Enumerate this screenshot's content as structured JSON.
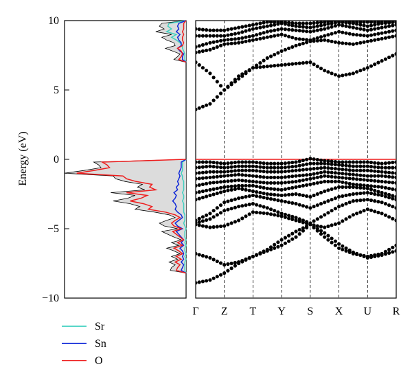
{
  "chart_data": [
    {
      "type": "area",
      "panel": "density of states",
      "ylabel": "Energy (eV)",
      "ylim": [
        -10,
        10
      ],
      "yticks": [
        {
          "value": 10,
          "label": "10"
        },
        {
          "value": 5,
          "label": "5"
        },
        {
          "value": 0,
          "label": "0"
        },
        {
          "value": -5,
          "label": "−5"
        },
        {
          "value": -10,
          "label": "−10"
        }
      ],
      "xlim": [
        0,
        1
      ],
      "fermi_level": 0,
      "energy": [
        -8.2,
        -8.0,
        -7.8,
        -7.6,
        -7.4,
        -7.2,
        -7.0,
        -6.8,
        -6.6,
        -6.4,
        -6.2,
        -6.0,
        -5.8,
        -5.6,
        -5.4,
        -5.2,
        -5.0,
        -4.8,
        -4.6,
        -4.4,
        -4.2,
        -4.0,
        -3.8,
        -3.6,
        -3.4,
        -3.2,
        -3.0,
        -2.8,
        -2.6,
        -2.4,
        -2.2,
        -2.0,
        -1.8,
        -1.6,
        -1.4,
        -1.2,
        -1.0,
        -0.8,
        -0.6,
        -0.4,
        -0.2,
        0.0,
        7.0,
        7.2,
        7.4,
        7.6,
        7.8,
        8.0,
        8.2,
        8.4,
        8.6,
        8.8,
        9.0,
        9.2,
        9.4,
        9.6,
        9.8,
        10.0
      ],
      "total": [
        0.0,
        0.13,
        0.12,
        0.09,
        0.14,
        0.07,
        0.12,
        0.05,
        0.1,
        0.16,
        0.06,
        0.12,
        0.04,
        0.1,
        0.15,
        0.2,
        0.07,
        0.18,
        0.22,
        0.16,
        0.09,
        0.14,
        0.26,
        0.42,
        0.38,
        0.46,
        0.6,
        0.48,
        0.42,
        0.62,
        0.34,
        0.4,
        0.36,
        0.5,
        0.58,
        0.6,
        1.0,
        0.84,
        0.7,
        0.72,
        0.76,
        0.0,
        0.0,
        0.1,
        0.07,
        0.05,
        0.11,
        0.17,
        0.09,
        0.1,
        0.16,
        0.2,
        0.12,
        0.25,
        0.18,
        0.22,
        0.2,
        0.0
      ],
      "series": [
        {
          "name": "Sr",
          "color": "#3fd0c0",
          "values": [
            0.0,
            0.01,
            0.01,
            0.01,
            0.01,
            0.0,
            0.01,
            0.0,
            0.01,
            0.01,
            0.0,
            0.01,
            0.0,
            0.01,
            0.01,
            0.01,
            0.0,
            0.01,
            0.02,
            0.01,
            0.01,
            0.01,
            0.02,
            0.02,
            0.02,
            0.02,
            0.03,
            0.02,
            0.02,
            0.03,
            0.02,
            0.02,
            0.02,
            0.02,
            0.03,
            0.03,
            0.04,
            0.03,
            0.03,
            0.03,
            0.03,
            0.0,
            0.0,
            0.01,
            0.01,
            0.01,
            0.02,
            0.03,
            0.03,
            0.05,
            0.08,
            0.12,
            0.08,
            0.16,
            0.12,
            0.15,
            0.14,
            0.0
          ]
        },
        {
          "name": "Sn",
          "color": "#1028d8",
          "values": [
            0.0,
            0.04,
            0.03,
            0.02,
            0.04,
            0.02,
            0.03,
            0.02,
            0.03,
            0.05,
            0.02,
            0.04,
            0.02,
            0.04,
            0.06,
            0.08,
            0.03,
            0.07,
            0.09,
            0.06,
            0.03,
            0.04,
            0.07,
            0.09,
            0.08,
            0.09,
            0.11,
            0.09,
            0.08,
            0.1,
            0.07,
            0.08,
            0.06,
            0.07,
            0.06,
            0.05,
            0.06,
            0.05,
            0.04,
            0.04,
            0.04,
            0.0,
            0.0,
            0.03,
            0.03,
            0.02,
            0.05,
            0.07,
            0.04,
            0.04,
            0.06,
            0.07,
            0.05,
            0.08,
            0.06,
            0.07,
            0.06,
            0.0
          ]
        },
        {
          "name": "O",
          "color": "#ee1c1c",
          "values": [
            0.0,
            0.08,
            0.07,
            0.05,
            0.09,
            0.04,
            0.08,
            0.03,
            0.06,
            0.1,
            0.03,
            0.07,
            0.02,
            0.05,
            0.08,
            0.11,
            0.04,
            0.1,
            0.12,
            0.09,
            0.05,
            0.09,
            0.17,
            0.31,
            0.28,
            0.35,
            0.46,
            0.37,
            0.32,
            0.49,
            0.25,
            0.3,
            0.28,
            0.41,
            0.49,
            0.52,
            0.9,
            0.76,
            0.63,
            0.65,
            0.69,
            0.0,
            0.0,
            0.06,
            0.04,
            0.03,
            0.04,
            0.07,
            0.03,
            0.02,
            0.03,
            0.03,
            0.02,
            0.03,
            0.02,
            0.02,
            0.02,
            0.0
          ]
        }
      ]
    },
    {
      "type": "scatter",
      "panel": "band structure",
      "ylim": [
        -10,
        10
      ],
      "kpoints": [
        {
          "label": "Γ",
          "x": 0
        },
        {
          "label": "Z",
          "x": 1
        },
        {
          "label": "T",
          "x": 2
        },
        {
          "label": "Y",
          "x": 3
        },
        {
          "label": "S",
          "x": 4
        },
        {
          "label": "X",
          "x": 5
        },
        {
          "label": "U",
          "x": 6
        },
        {
          "label": "R",
          "x": 7
        }
      ],
      "x_samples": [
        0,
        0.5,
        1,
        1.5,
        2,
        2.5,
        3,
        3.5,
        4,
        4.5,
        5,
        5.5,
        6,
        6.5,
        7
      ],
      "fermi_level": 0,
      "fermi_color": "#ee1c1c",
      "bands": [
        [
          -8.9,
          -8.7,
          -8.2,
          -7.5,
          -7.0,
          -6.6,
          -6.2,
          -5.6,
          -4.7,
          -5.6,
          -6.4,
          -6.8,
          -7.0,
          -6.8,
          -6.2
        ],
        [
          -6.8,
          -7.1,
          -7.6,
          -7.4,
          -7.0,
          -6.5,
          -5.8,
          -5.2,
          -4.7,
          -5.3,
          -6.1,
          -6.7,
          -7.1,
          -6.9,
          -6.6
        ],
        [
          -4.7,
          -4.9,
          -4.8,
          -4.4,
          -3.8,
          -3.9,
          -4.1,
          -4.4,
          -4.7,
          -4.9,
          -4.6,
          -4.0,
          -3.6,
          -3.9,
          -4.4
        ],
        [
          -4.6,
          -4.3,
          -3.7,
          -3.4,
          -3.2,
          -3.5,
          -3.9,
          -4.2,
          -4.6,
          -4.0,
          -3.4,
          -3.0,
          -2.9,
          -3.1,
          -3.5
        ],
        [
          -4.4,
          -3.9,
          -3.1,
          -2.8,
          -2.6,
          -2.8,
          -3.0,
          -3.2,
          -3.5,
          -3.1,
          -2.7,
          -2.5,
          -2.4,
          -2.6,
          -2.9
        ],
        [
          -2.9,
          -2.6,
          -2.3,
          -2.1,
          -2.3,
          -2.5,
          -2.6,
          -2.5,
          -2.7,
          -2.3,
          -2.0,
          -2.0,
          -2.1,
          -2.4,
          -2.7
        ],
        [
          -2.4,
          -2.2,
          -2.0,
          -1.9,
          -1.9,
          -2.1,
          -2.2,
          -2.0,
          -1.8,
          -1.6,
          -1.6,
          -1.8,
          -1.9,
          -2.0,
          -2.2
        ],
        [
          -1.9,
          -1.7,
          -1.6,
          -1.5,
          -1.6,
          -1.7,
          -1.7,
          -1.6,
          -1.4,
          -1.2,
          -1.3,
          -1.4,
          -1.5,
          -1.6,
          -1.7
        ],
        [
          -1.4,
          -1.3,
          -1.2,
          -1.1,
          -1.2,
          -1.3,
          -1.3,
          -1.2,
          -1.1,
          -0.9,
          -1.0,
          -1.1,
          -1.2,
          -1.2,
          -1.3
        ],
        [
          -1.0,
          -0.9,
          -0.9,
          -0.8,
          -0.8,
          -0.9,
          -0.9,
          -0.8,
          -0.7,
          -0.6,
          -0.7,
          -0.8,
          -0.8,
          -0.9,
          -1.0
        ],
        [
          -0.6,
          -0.5,
          -0.6,
          -0.5,
          -0.5,
          -0.6,
          -0.6,
          -0.5,
          -0.3,
          -0.3,
          -0.4,
          -0.5,
          -0.5,
          -0.6,
          -0.6
        ],
        [
          -0.2,
          -0.2,
          -0.3,
          -0.2,
          -0.2,
          -0.3,
          -0.3,
          -0.2,
          0.05,
          -0.1,
          -0.2,
          -0.2,
          -0.2,
          -0.3,
          -0.2
        ],
        [
          3.6,
          4.0,
          5.0,
          6.0,
          6.6,
          6.7,
          6.8,
          6.9,
          7.0,
          6.4,
          6.0,
          6.2,
          6.6,
          7.1,
          7.6
        ],
        [
          7.0,
          6.2,
          5.0,
          5.8,
          6.6,
          7.3,
          7.8,
          8.2,
          8.5,
          8.6,
          8.4,
          8.3,
          8.5,
          8.7,
          8.9
        ],
        [
          7.7,
          7.9,
          8.3,
          8.4,
          8.6,
          8.8,
          9.0,
          8.7,
          8.6,
          8.9,
          9.2,
          9.0,
          8.9,
          9.1,
          9.3
        ],
        [
          8.1,
          8.4,
          8.6,
          8.7,
          8.9,
          9.2,
          9.4,
          9.3,
          9.2,
          9.4,
          9.7,
          9.5,
          9.3,
          9.5,
          9.7
        ],
        [
          8.9,
          8.9,
          8.9,
          9.1,
          9.4,
          9.6,
          9.8,
          9.6,
          9.5,
          9.7,
          9.9,
          9.8,
          9.6,
          9.8,
          9.9
        ],
        [
          9.4,
          9.3,
          9.3,
          9.5,
          9.7,
          9.9,
          9.9,
          9.8,
          9.8,
          9.9,
          10.0,
          9.9,
          9.9,
          9.9,
          10.0
        ]
      ]
    }
  ],
  "legend": [
    {
      "name": "Sr",
      "color": "#3fd0c0"
    },
    {
      "name": "Sn",
      "color": "#1028d8"
    },
    {
      "name": "O",
      "color": "#ee1c1c"
    }
  ]
}
